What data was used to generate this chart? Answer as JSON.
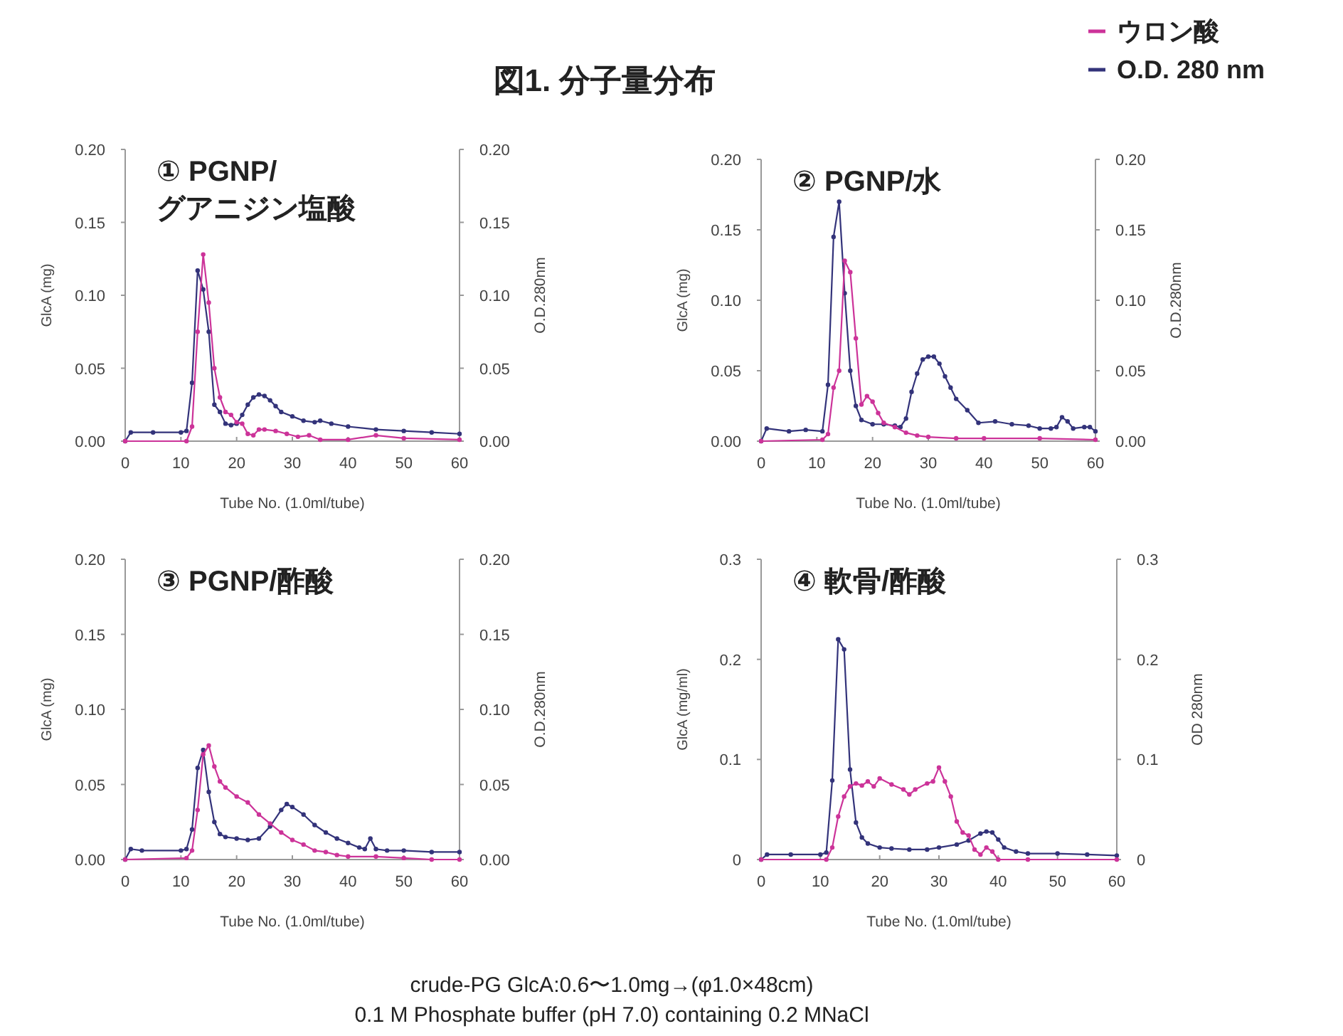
{
  "chart_data": [
    {
      "type": "line",
      "title": "① PGNP/グアニジン塩酸",
      "annotations": [
        "図1. 分子量分布"
      ],
      "xlabel": "Tube No. (1.0ml/tube)",
      "ylabel": "GlcA (mg)",
      "y2label": "O.D.280nm",
      "legend": "top right",
      "marker": "circle",
      "xlim": [
        0,
        60
      ],
      "xticks": [
        0,
        10,
        20,
        30,
        40,
        50,
        60
      ],
      "ylim": [
        0,
        0.2
      ],
      "yticks": [
        {
          "value": 0,
          "label": "0.00"
        },
        {
          "value": 0.05,
          "label": "0.05"
        },
        {
          "value": 0.1,
          "label": "0.10"
        },
        {
          "value": 0.15,
          "label": "0.15"
        },
        {
          "value": 0.2,
          "label": "0.20"
        }
      ],
      "y2lim": [
        0,
        0.2
      ],
      "y2ticks": [
        {
          "value": 0,
          "label": "0.00"
        },
        {
          "value": 0.05,
          "label": "0.05"
        },
        {
          "value": 0.1,
          "label": "0.10"
        },
        {
          "value": 0.15,
          "label": "0.15"
        },
        {
          "value": 0.2,
          "label": "0.20"
        }
      ],
      "series": [
        {
          "name": "ウロン酸",
          "color": "#cc3399",
          "x": [
            0,
            11,
            12,
            13,
            14,
            15,
            16,
            17,
            18,
            19,
            20,
            21,
            22,
            23,
            24,
            25,
            27,
            29,
            31,
            33,
            35,
            40,
            45,
            50,
            60
          ],
          "values": [
            0,
            0,
            0.01,
            0.075,
            0.128,
            0.095,
            0.05,
            0.03,
            0.02,
            0.018,
            0.013,
            0.012,
            0.005,
            0.004,
            0.008,
            0.008,
            0.007,
            0.005,
            0.003,
            0.004,
            0.001,
            0.001,
            0.004,
            0.002,
            0.001
          ]
        },
        {
          "name": "O.D. 280 nm",
          "color": "#33337a",
          "axis": "y2",
          "x": [
            0,
            1,
            5,
            10,
            11,
            12,
            13,
            14,
            15,
            16,
            17,
            18,
            19,
            20,
            21,
            22,
            23,
            24,
            25,
            26,
            27,
            28,
            30,
            32,
            34,
            35,
            37,
            40,
            45,
            50,
            55,
            60
          ],
          "values": [
            0,
            0.006,
            0.006,
            0.006,
            0.007,
            0.04,
            0.117,
            0.104,
            0.075,
            0.025,
            0.02,
            0.012,
            0.011,
            0.012,
            0.018,
            0.025,
            0.03,
            0.032,
            0.031,
            0.028,
            0.024,
            0.02,
            0.017,
            0.014,
            0.013,
            0.014,
            0.012,
            0.01,
            0.008,
            0.007,
            0.006,
            0.005
          ]
        }
      ]
    },
    {
      "type": "line",
      "title": "② PGNP/水",
      "xlabel": "Tube No. (1.0ml/tube)",
      "ylabel": "GlcA (mg)",
      "y2label": "O.D.280nm",
      "marker": "circle",
      "xlim": [
        0,
        60
      ],
      "xticks": [
        0,
        10,
        20,
        30,
        40,
        50,
        60
      ],
      "ylim": [
        0,
        0.2
      ],
      "yticks": [
        {
          "value": 0,
          "label": "0.00"
        },
        {
          "value": 0.05,
          "label": "0.05"
        },
        {
          "value": 0.1,
          "label": "0.10"
        },
        {
          "value": 0.15,
          "label": "0.15"
        },
        {
          "value": 0.2,
          "label": "0.20"
        }
      ],
      "y2lim": [
        0,
        0.2
      ],
      "y2ticks": [
        {
          "value": 0,
          "label": "0.00"
        },
        {
          "value": 0.05,
          "label": "0.05"
        },
        {
          "value": 0.1,
          "label": "0.10"
        },
        {
          "value": 0.15,
          "label": "0.15"
        },
        {
          "value": 0.2,
          "label": "0.20"
        }
      ],
      "series": [
        {
          "color": "#cc3399",
          "x": [
            0,
            11,
            12,
            13,
            14,
            15,
            16,
            17,
            18,
            19,
            20,
            21,
            22,
            24,
            26,
            28,
            30,
            35,
            40,
            50,
            60
          ],
          "values": [
            0,
            0.001,
            0.005,
            0.038,
            0.05,
            0.128,
            0.12,
            0.073,
            0.026,
            0.032,
            0.028,
            0.02,
            0.013,
            0.01,
            0.006,
            0.004,
            0.003,
            0.002,
            0.002,
            0.002,
            0.001
          ]
        },
        {
          "color": "#33337a",
          "axis": "y2",
          "x": [
            0,
            1,
            5,
            8,
            11,
            12,
            13,
            14,
            15,
            16,
            17,
            18,
            20,
            22,
            24,
            25,
            26,
            27,
            28,
            29,
            30,
            31,
            32,
            33,
            34,
            35,
            37,
            39,
            42,
            45,
            48,
            50,
            52,
            53,
            54,
            55,
            56,
            58,
            59,
            60
          ],
          "values": [
            0,
            0.009,
            0.007,
            0.008,
            0.007,
            0.04,
            0.145,
            0.17,
            0.105,
            0.05,
            0.025,
            0.015,
            0.012,
            0.012,
            0.011,
            0.01,
            0.016,
            0.035,
            0.048,
            0.058,
            0.06,
            0.06,
            0.055,
            0.046,
            0.038,
            0.03,
            0.022,
            0.013,
            0.014,
            0.012,
            0.011,
            0.009,
            0.009,
            0.01,
            0.017,
            0.014,
            0.009,
            0.01,
            0.01,
            0.007
          ]
        }
      ]
    },
    {
      "type": "line",
      "title": "③ PGNP/酢酸",
      "xlabel": "Tube No. (1.0ml/tube)",
      "ylabel": "GlcA (mg)",
      "y2label": "O.D.280nm",
      "marker": "circle",
      "xlim": [
        0,
        60
      ],
      "xticks": [
        0,
        10,
        20,
        30,
        40,
        50,
        60
      ],
      "ylim": [
        0,
        0.2
      ],
      "yticks": [
        {
          "value": 0,
          "label": "0.00"
        },
        {
          "value": 0.05,
          "label": "0.05"
        },
        {
          "value": 0.1,
          "label": "0.10"
        },
        {
          "value": 0.15,
          "label": "0.15"
        },
        {
          "value": 0.2,
          "label": "0.20"
        }
      ],
      "y2lim": [
        0,
        0.2
      ],
      "y2ticks": [
        {
          "value": 0,
          "label": "0.00"
        },
        {
          "value": 0.05,
          "label": "0.05"
        },
        {
          "value": 0.1,
          "label": "0.10"
        },
        {
          "value": 0.15,
          "label": "0.15"
        },
        {
          "value": 0.2,
          "label": "0.20"
        }
      ],
      "series": [
        {
          "color": "#cc3399",
          "x": [
            0,
            11,
            12,
            13,
            14,
            15,
            16,
            17,
            18,
            20,
            22,
            24,
            26,
            28,
            30,
            32,
            34,
            36,
            38,
            40,
            45,
            50,
            55,
            60
          ],
          "values": [
            0,
            0.001,
            0.006,
            0.033,
            0.07,
            0.076,
            0.062,
            0.052,
            0.048,
            0.042,
            0.038,
            0.03,
            0.024,
            0.018,
            0.013,
            0.01,
            0.006,
            0.005,
            0.003,
            0.002,
            0.002,
            0.001,
            0,
            0
          ]
        },
        {
          "color": "#33337a",
          "axis": "y2",
          "x": [
            0,
            1,
            3,
            10,
            11,
            12,
            13,
            14,
            15,
            16,
            17,
            18,
            20,
            22,
            24,
            26,
            28,
            29,
            30,
            32,
            34,
            36,
            38,
            40,
            42,
            43,
            44,
            45,
            47,
            50,
            55,
            60
          ],
          "values": [
            0,
            0.007,
            0.006,
            0.006,
            0.007,
            0.02,
            0.061,
            0.073,
            0.045,
            0.025,
            0.017,
            0.015,
            0.014,
            0.013,
            0.014,
            0.022,
            0.033,
            0.037,
            0.035,
            0.03,
            0.023,
            0.018,
            0.014,
            0.011,
            0.008,
            0.007,
            0.014,
            0.007,
            0.006,
            0.006,
            0.005,
            0.005
          ]
        }
      ]
    },
    {
      "type": "line",
      "title": "④ 軟骨/酢酸",
      "annotations": [
        "crude-PG GlcA:0.6〜1.0mg→(φ1.0×48cm)",
        "0.1 M  Phosphate buffer (pH 7.0) containing 0.2 MNaCl"
      ],
      "xlabel": "Tube No. (1.0ml/tube)",
      "ylabel": "GlcA (mg/ml)",
      "y2label": "OD 280nm",
      "marker": "circle",
      "xlim": [
        0,
        60
      ],
      "xticks": [
        0,
        10,
        20,
        30,
        40,
        50,
        60
      ],
      "ylim": [
        0,
        0.3
      ],
      "yticks": [
        0,
        0.1,
        0.2,
        0.3
      ],
      "y2lim": [
        0,
        0.3
      ],
      "y2ticks": [
        0,
        0.1,
        0.2,
        0.3
      ],
      "series": [
        {
          "color": "#cc3399",
          "x": [
            0,
            11,
            12,
            13,
            14,
            15,
            16,
            17,
            18,
            19,
            20,
            22,
            24,
            25,
            26,
            28,
            29,
            30,
            31,
            32,
            33,
            34,
            35,
            36,
            37,
            38,
            39,
            40,
            45,
            60
          ],
          "values": [
            0,
            0,
            0.012,
            0.043,
            0.063,
            0.073,
            0.076,
            0.074,
            0.078,
            0.073,
            0.081,
            0.075,
            0.07,
            0.065,
            0.07,
            0.076,
            0.078,
            0.092,
            0.078,
            0.063,
            0.038,
            0.027,
            0.024,
            0.01,
            0.005,
            0.012,
            0.008,
            0,
            0,
            0
          ]
        },
        {
          "color": "#33337a",
          "axis": "y2",
          "x": [
            0,
            1,
            5,
            10,
            11,
            12,
            13,
            14,
            15,
            16,
            17,
            18,
            20,
            22,
            25,
            28,
            30,
            33,
            35,
            37,
            38,
            39,
            40,
            41,
            43,
            45,
            50,
            55,
            60
          ],
          "values": [
            0,
            0.005,
            0.005,
            0.005,
            0.007,
            0.079,
            0.22,
            0.21,
            0.09,
            0.037,
            0.022,
            0.016,
            0.012,
            0.011,
            0.01,
            0.01,
            0.012,
            0.015,
            0.019,
            0.026,
            0.028,
            0.027,
            0.02,
            0.012,
            0.008,
            0.006,
            0.006,
            0.005,
            0.004
          ]
        }
      ]
    }
  ]
}
